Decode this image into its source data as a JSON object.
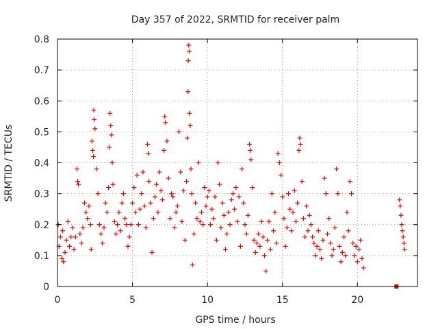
{
  "chart_data": {
    "type": "scatter",
    "title": "Day 357 of 2022, SRMTID for receiver palm",
    "xlabel": "GPS time / hours",
    "ylabel": "SRMTID / TECUs",
    "xlim": [
      0,
      24
    ],
    "ylim": [
      0,
      0.8
    ],
    "xticks": [
      0,
      5,
      10,
      15,
      20
    ],
    "xtick_labels": [
      "0",
      "5",
      "10",
      "15",
      "20"
    ],
    "yticks": [
      0,
      0.1,
      0.2,
      0.3,
      0.4,
      0.5,
      0.6,
      0.7,
      0.8
    ],
    "ytick_labels": [
      "0",
      "0.1",
      "0.2",
      "0.3",
      "0.4",
      "0.5",
      "0.6",
      "0.7",
      "0.8"
    ],
    "grid": true,
    "marker": "+",
    "series_color": "#e00000",
    "series": [
      {
        "name": "SRMTID",
        "points": [
          [
            0.05,
            0.2
          ],
          [
            0.1,
            0.13
          ],
          [
            0.2,
            0.16
          ],
          [
            0.3,
            0.09
          ],
          [
            0.35,
            0.18
          ],
          [
            0.4,
            0.08
          ],
          [
            0.5,
            0.11
          ],
          [
            0.6,
            0.15
          ],
          [
            0.7,
            0.21
          ],
          [
            0.8,
            0.13
          ],
          [
            0.9,
            0.16
          ],
          [
            1.0,
            0.19
          ],
          [
            1.1,
            0.12
          ],
          [
            1.2,
            0.16
          ],
          [
            1.3,
            0.38
          ],
          [
            1.35,
            0.34
          ],
          [
            1.4,
            0.33
          ],
          [
            1.5,
            0.17
          ],
          [
            1.6,
            0.14
          ],
          [
            1.7,
            0.19
          ],
          [
            1.8,
            0.27
          ],
          [
            1.9,
            0.24
          ],
          [
            2.0,
            0.22
          ],
          [
            2.1,
            0.26
          ],
          [
            2.2,
            0.2
          ],
          [
            2.25,
            0.12
          ],
          [
            2.3,
            0.47
          ],
          [
            2.35,
            0.44
          ],
          [
            2.4,
            0.42
          ],
          [
            2.42,
            0.57
          ],
          [
            2.45,
            0.54
          ],
          [
            2.5,
            0.51
          ],
          [
            2.6,
            0.38
          ],
          [
            2.7,
            0.3
          ],
          [
            2.8,
            0.2
          ],
          [
            2.9,
            0.17
          ],
          [
            3.0,
            0.14
          ],
          [
            3.1,
            0.19
          ],
          [
            3.2,
            0.27
          ],
          [
            3.3,
            0.24
          ],
          [
            3.4,
            0.32
          ],
          [
            3.45,
            0.45
          ],
          [
            3.5,
            0.56
          ],
          [
            3.55,
            0.52
          ],
          [
            3.6,
            0.49
          ],
          [
            3.65,
            0.4
          ],
          [
            3.7,
            0.33
          ],
          [
            3.8,
            0.21
          ],
          [
            3.9,
            0.17
          ],
          [
            4.0,
            0.2
          ],
          [
            4.1,
            0.24
          ],
          [
            4.2,
            0.18
          ],
          [
            4.3,
            0.27
          ],
          [
            4.4,
            0.3
          ],
          [
            4.5,
            0.22
          ],
          [
            4.6,
            0.2
          ],
          [
            4.7,
            0.13
          ],
          [
            4.8,
            0.16
          ],
          [
            4.9,
            0.2
          ],
          [
            5.0,
            0.27
          ],
          [
            5.1,
            0.32
          ],
          [
            5.2,
            0.24
          ],
          [
            5.3,
            0.36
          ],
          [
            5.4,
            0.2
          ],
          [
            5.5,
            0.25
          ],
          [
            5.6,
            0.3
          ],
          [
            5.7,
            0.37
          ],
          [
            5.8,
            0.26
          ],
          [
            5.9,
            0.19
          ],
          [
            6.0,
            0.46
          ],
          [
            6.05,
            0.43
          ],
          [
            6.1,
            0.34
          ],
          [
            6.2,
            0.27
          ],
          [
            6.3,
            0.11
          ],
          [
            6.4,
            0.22
          ],
          [
            6.5,
            0.29
          ],
          [
            6.6,
            0.33
          ],
          [
            6.7,
            0.24
          ],
          [
            6.8,
            0.37
          ],
          [
            6.9,
            0.31
          ],
          [
            7.0,
            0.28
          ],
          [
            7.1,
            0.44
          ],
          [
            7.15,
            0.55
          ],
          [
            7.2,
            0.53
          ],
          [
            7.3,
            0.47
          ],
          [
            7.4,
            0.35
          ],
          [
            7.5,
            0.22
          ],
          [
            7.6,
            0.3
          ],
          [
            7.7,
            0.29
          ],
          [
            7.8,
            0.19
          ],
          [
            7.9,
            0.24
          ],
          [
            8.0,
            0.26
          ],
          [
            8.1,
            0.5
          ],
          [
            8.2,
            0.37
          ],
          [
            8.3,
            0.21
          ],
          [
            8.4,
            0.31
          ],
          [
            8.5,
            0.15
          ],
          [
            8.6,
            0.34
          ],
          [
            8.65,
            0.48
          ],
          [
            8.7,
            0.63
          ],
          [
            8.72,
            0.73
          ],
          [
            8.75,
            0.78
          ],
          [
            8.78,
            0.76
          ],
          [
            8.8,
            0.56
          ],
          [
            8.85,
            0.52
          ],
          [
            8.9,
            0.38
          ],
          [
            8.95,
            0.3
          ],
          [
            9.0,
            0.07
          ],
          [
            9.1,
            0.17
          ],
          [
            9.2,
            0.27
          ],
          [
            9.3,
            0.22
          ],
          [
            9.4,
            0.4
          ],
          [
            9.5,
            0.21
          ],
          [
            9.6,
            0.24
          ],
          [
            9.7,
            0.2
          ],
          [
            9.8,
            0.32
          ],
          [
            9.9,
            0.26
          ],
          [
            10.0,
            0.29
          ],
          [
            10.1,
            0.31
          ],
          [
            10.2,
            0.2
          ],
          [
            10.3,
            0.25
          ],
          [
            10.4,
            0.22
          ],
          [
            10.5,
            0.29
          ],
          [
            10.6,
            0.15
          ],
          [
            10.7,
            0.4
          ],
          [
            10.8,
            0.33
          ],
          [
            10.9,
            0.19
          ],
          [
            11.0,
            0.27
          ],
          [
            11.1,
            0.23
          ],
          [
            11.2,
            0.12
          ],
          [
            11.3,
            0.17
          ],
          [
            11.4,
            0.24
          ],
          [
            11.5,
            0.2
          ],
          [
            11.6,
            0.28
          ],
          [
            11.7,
            0.3
          ],
          [
            11.8,
            0.25
          ],
          [
            11.9,
            0.32
          ],
          [
            12.0,
            0.21
          ],
          [
            12.1,
            0.29
          ],
          [
            12.2,
            0.13
          ],
          [
            12.3,
            0.38
          ],
          [
            12.4,
            0.27
          ],
          [
            12.5,
            0.2
          ],
          [
            12.6,
            0.17
          ],
          [
            12.7,
            0.23
          ],
          [
            12.8,
            0.46
          ],
          [
            12.85,
            0.44
          ],
          [
            12.9,
            0.41
          ],
          [
            13.0,
            0.32
          ],
          [
            13.1,
            0.15
          ],
          [
            13.2,
            0.11
          ],
          [
            13.3,
            0.14
          ],
          [
            13.4,
            0.17
          ],
          [
            13.5,
            0.13
          ],
          [
            13.6,
            0.21
          ],
          [
            13.7,
            0.16
          ],
          [
            13.8,
            0.1
          ],
          [
            13.9,
            0.05
          ],
          [
            14.0,
            0.15
          ],
          [
            14.1,
            0.21
          ],
          [
            14.2,
            0.12
          ],
          [
            14.3,
            0.3
          ],
          [
            14.4,
            0.18
          ],
          [
            14.5,
            0.24
          ],
          [
            14.6,
            0.14
          ],
          [
            14.7,
            0.43
          ],
          [
            14.8,
            0.4
          ],
          [
            14.9,
            0.36
          ],
          [
            15.0,
            0.29
          ],
          [
            15.1,
            0.22
          ],
          [
            15.2,
            0.13
          ],
          [
            15.3,
            0.19
          ],
          [
            15.4,
            0.3
          ],
          [
            15.5,
            0.25
          ],
          [
            15.6,
            0.18
          ],
          [
            15.7,
            0.24
          ],
          [
            15.8,
            0.31
          ],
          [
            15.9,
            0.21
          ],
          [
            16.0,
            0.27
          ],
          [
            16.1,
            0.44
          ],
          [
            16.15,
            0.48
          ],
          [
            16.2,
            0.46
          ],
          [
            16.3,
            0.34
          ],
          [
            16.4,
            0.22
          ],
          [
            16.5,
            0.16
          ],
          [
            16.6,
            0.26
          ],
          [
            16.7,
            0.18
          ],
          [
            16.8,
            0.23
          ],
          [
            16.9,
            0.2
          ],
          [
            17.0,
            0.16
          ],
          [
            17.1,
            0.14
          ],
          [
            17.2,
            0.1
          ],
          [
            17.3,
            0.13
          ],
          [
            17.4,
            0.18
          ],
          [
            17.5,
            0.12
          ],
          [
            17.6,
            0.09
          ],
          [
            17.7,
            0.15
          ],
          [
            17.8,
            0.35
          ],
          [
            17.9,
            0.3
          ],
          [
            18.0,
            0.17
          ],
          [
            18.1,
            0.22
          ],
          [
            18.2,
            0.14
          ],
          [
            18.3,
            0.1
          ],
          [
            18.4,
            0.12
          ],
          [
            18.5,
            0.19
          ],
          [
            18.6,
            0.38
          ],
          [
            18.7,
            0.3
          ],
          [
            18.8,
            0.13
          ],
          [
            18.9,
            0.08
          ],
          [
            19.0,
            0.11
          ],
          [
            19.1,
            0.16
          ],
          [
            19.2,
            0.1
          ],
          [
            19.3,
            0.24
          ],
          [
            19.4,
            0.18
          ],
          [
            19.5,
            0.34
          ],
          [
            19.6,
            0.3
          ],
          [
            19.7,
            0.14
          ],
          [
            19.8,
            0.1
          ],
          [
            19.9,
            0.13
          ],
          [
            20.0,
            0.08
          ],
          [
            20.1,
            0.12
          ],
          [
            20.2,
            0.15
          ],
          [
            20.3,
            0.09
          ],
          [
            20.4,
            0.06
          ],
          [
            22.8,
            0.28
          ],
          [
            22.85,
            0.26
          ],
          [
            22.9,
            0.23
          ],
          [
            22.95,
            0.2
          ],
          [
            23.0,
            0.18
          ],
          [
            23.05,
            0.16
          ],
          [
            23.1,
            0.14
          ],
          [
            23.15,
            0.12
          ]
        ]
      }
    ],
    "annotations": [
      {
        "x": 22.6,
        "y": 0.0,
        "marker": "square"
      }
    ]
  }
}
